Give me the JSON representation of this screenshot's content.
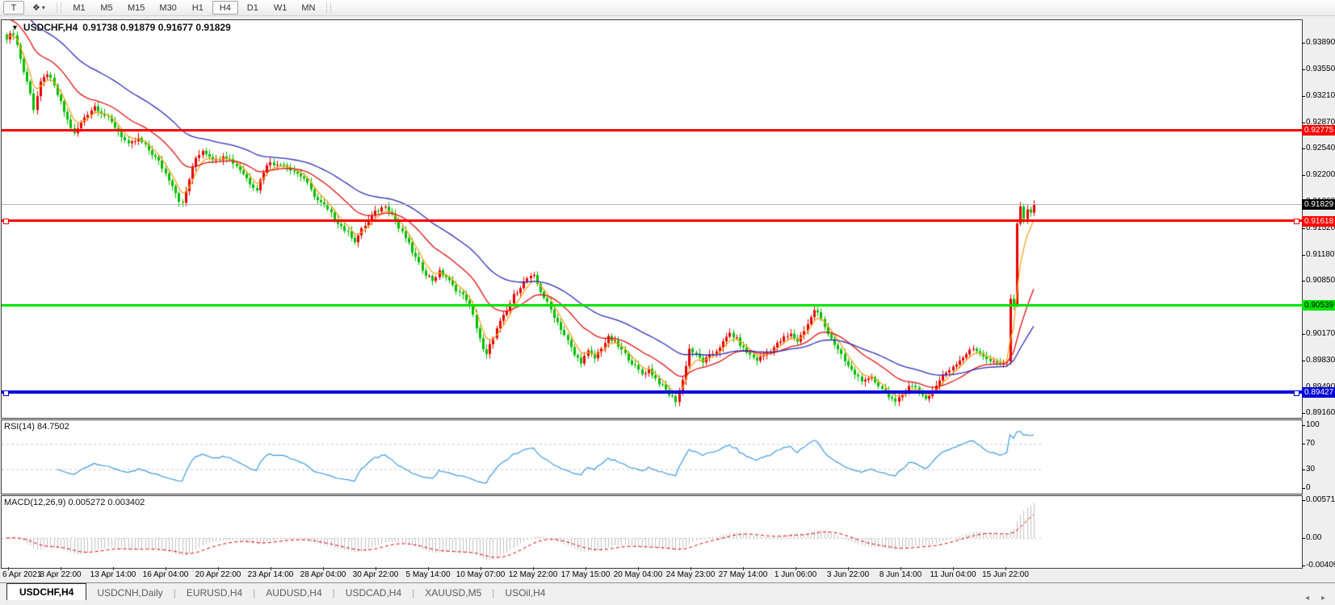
{
  "toolbar": {
    "text_tool_label": "T",
    "palette_icon": "❖",
    "caret": "▾",
    "timeframes": [
      {
        "label": "M1",
        "active": false
      },
      {
        "label": "M5",
        "active": false
      },
      {
        "label": "M15",
        "active": false
      },
      {
        "label": "M30",
        "active": false
      },
      {
        "label": "H1",
        "active": false
      },
      {
        "label": "H4",
        "active": true
      },
      {
        "label": "D1",
        "active": false
      },
      {
        "label": "W1",
        "active": false
      },
      {
        "label": "MN",
        "active": false
      }
    ]
  },
  "chart": {
    "title_symbol": "USDCHF,H4",
    "title_marker": "▼",
    "title_quote": "0.91738 0.91879 0.91677 0.91829",
    "price_axis_labels": [
      "0.93890",
      "0.93550",
      "0.93210",
      "0.92870",
      "0.92540",
      "0.92200",
      "0.91860",
      "0.91520",
      "0.91180",
      "0.90850",
      "0.90510",
      "0.90170",
      "0.89830",
      "0.89490",
      "0.89160"
    ],
    "current_price_badge": "0.91829",
    "date_labels": [
      "6 Apr 2021",
      "8 Apr 22:00",
      "13 Apr 14:00",
      "16 Apr 04:00",
      "20 Apr 22:00",
      "23 Apr 14:00",
      "28 Apr 04:00",
      "30 Apr 22:00",
      "5 May 14:00",
      "10 May 07:00",
      "12 May 22:00",
      "17 May 15:00",
      "20 May 04:00",
      "24 May 23:00",
      "27 May 14:00",
      "1 Jun 06:00",
      "3 Jun 22:00",
      "8 Jun 14:00",
      "11 Jun 04:00",
      "15 Jun 22:00"
    ]
  },
  "rsi_pane": {
    "label": "RSI(14) 84.7502",
    "axis_labels": [
      {
        "text": "100",
        "v": 100
      },
      {
        "text": "70",
        "v": 70
      },
      {
        "text": "30",
        "v": 30
      },
      {
        "text": "0",
        "v": 0
      }
    ]
  },
  "macd_pane": {
    "label": "MACD(12,26,9) 0.005272 0.003402",
    "axis_labels": [
      {
        "text": "0.005718",
        "v": 0.005718
      },
      {
        "text": "0.00",
        "v": 0
      },
      {
        "text": "-0.004094",
        "v": -0.004094
      }
    ]
  },
  "tabs": [
    {
      "label": "USDCHF,H4",
      "active": true
    },
    {
      "label": "USDCNH,Daily",
      "active": false
    },
    {
      "label": "EURUSD,H4",
      "active": false
    },
    {
      "label": "AUDUSD,H4",
      "active": false
    },
    {
      "label": "USDCAD,H4",
      "active": false
    },
    {
      "label": "XAUUSD,M5",
      "active": false
    },
    {
      "label": "USOil,H4",
      "active": false
    }
  ],
  "tab_nav": "◂ ▸",
  "chart_data": {
    "type": "candlestick",
    "symbol": "USDCHF",
    "timeframe": "H4",
    "ohlc_current": {
      "open": 0.91738,
      "high": 0.91879,
      "low": 0.91677,
      "close": 0.91829
    },
    "y_range_price": {
      "top": 0.94178,
      "bottom": 0.8912
    },
    "candle_count": 305,
    "bull_color": "#e60000",
    "bear_color": "#00be00",
    "price_path": [
      [
        0,
        0.9396
      ],
      [
        2,
        0.9401
      ],
      [
        3,
        0.9386
      ],
      [
        5,
        0.9352
      ],
      [
        7,
        0.9326
      ],
      [
        8,
        0.9304
      ],
      [
        10,
        0.9337
      ],
      [
        12,
        0.935
      ],
      [
        14,
        0.9333
      ],
      [
        16,
        0.9312
      ],
      [
        18,
        0.929
      ],
      [
        20,
        0.9272
      ],
      [
        23,
        0.9294
      ],
      [
        26,
        0.9308
      ],
      [
        28,
        0.93
      ],
      [
        30,
        0.9292
      ],
      [
        33,
        0.9276
      ],
      [
        36,
        0.9258
      ],
      [
        39,
        0.9266
      ],
      [
        42,
        0.9252
      ],
      [
        45,
        0.9237
      ],
      [
        47,
        0.9222
      ],
      [
        49,
        0.9208
      ],
      [
        51,
        0.9188
      ],
      [
        52,
        0.9183
      ],
      [
        54,
        0.9215
      ],
      [
        56,
        0.9242
      ],
      [
        58,
        0.9252
      ],
      [
        60,
        0.9245
      ],
      [
        62,
        0.9238
      ],
      [
        64,
        0.9246
      ],
      [
        66,
        0.924
      ],
      [
        68,
        0.9232
      ],
      [
        70,
        0.9222
      ],
      [
        72,
        0.921
      ],
      [
        74,
        0.9202
      ],
      [
        76,
        0.9225
      ],
      [
        78,
        0.9238
      ],
      [
        80,
        0.9232
      ],
      [
        82,
        0.9235
      ],
      [
        84,
        0.9228
      ],
      [
        86,
        0.9222
      ],
      [
        88,
        0.9216
      ],
      [
        90,
        0.92
      ],
      [
        92,
        0.9188
      ],
      [
        94,
        0.918
      ],
      [
        96,
        0.917
      ],
      [
        98,
        0.916
      ],
      [
        100,
        0.915
      ],
      [
        102,
        0.9142
      ],
      [
        103,
        0.9136
      ],
      [
        105,
        0.915
      ],
      [
        107,
        0.9162
      ],
      [
        109,
        0.9172
      ],
      [
        111,
        0.9178
      ],
      [
        112,
        0.9182
      ],
      [
        114,
        0.917
      ],
      [
        116,
        0.9152
      ],
      [
        118,
        0.914
      ],
      [
        120,
        0.9122
      ],
      [
        122,
        0.9106
      ],
      [
        124,
        0.9094
      ],
      [
        126,
        0.9086
      ],
      [
        128,
        0.9096
      ],
      [
        130,
        0.909
      ],
      [
        132,
        0.9078
      ],
      [
        134,
        0.907
      ],
      [
        136,
        0.9062
      ],
      [
        138,
        0.904
      ],
      [
        140,
        0.9012
      ],
      [
        141,
        0.8996
      ],
      [
        142,
        0.899
      ],
      [
        144,
        0.9014
      ],
      [
        146,
        0.9032
      ],
      [
        148,
        0.9046
      ],
      [
        150,
        0.9066
      ],
      [
        152,
        0.9078
      ],
      [
        154,
        0.9088
      ],
      [
        156,
        0.909
      ],
      [
        158,
        0.9072
      ],
      [
        160,
        0.9056
      ],
      [
        162,
        0.904
      ],
      [
        164,
        0.9024
      ],
      [
        166,
        0.9008
      ],
      [
        168,
        0.899
      ],
      [
        170,
        0.8982
      ],
      [
        172,
        0.8994
      ],
      [
        174,
        0.8986
      ],
      [
        176,
        0.9
      ],
      [
        178,
        0.9012
      ],
      [
        180,
        0.9006
      ],
      [
        182,
        0.8996
      ],
      [
        184,
        0.8986
      ],
      [
        186,
        0.8975
      ],
      [
        188,
        0.8966
      ],
      [
        190,
        0.8972
      ],
      [
        192,
        0.896
      ],
      [
        194,
        0.895
      ],
      [
        196,
        0.894
      ],
      [
        198,
        0.8932
      ],
      [
        200,
        0.8958
      ],
      [
        202,
        0.8998
      ],
      [
        204,
        0.899
      ],
      [
        206,
        0.8982
      ],
      [
        208,
        0.8988
      ],
      [
        210,
        0.8996
      ],
      [
        212,
        0.9006
      ],
      [
        214,
        0.9018
      ],
      [
        216,
        0.901
      ],
      [
        218,
        0.8998
      ],
      [
        220,
        0.899
      ],
      [
        222,
        0.8984
      ],
      [
        224,
        0.899
      ],
      [
        226,
        0.8996
      ],
      [
        228,
        0.9004
      ],
      [
        230,
        0.9012
      ],
      [
        232,
        0.9016
      ],
      [
        234,
        0.9008
      ],
      [
        236,
        0.9022
      ],
      [
        238,
        0.9038
      ],
      [
        239,
        0.9048
      ],
      [
        240,
        0.9044
      ],
      [
        242,
        0.9026
      ],
      [
        244,
        0.9012
      ],
      [
        246,
        0.8996
      ],
      [
        248,
        0.8982
      ],
      [
        250,
        0.897
      ],
      [
        252,
        0.8962
      ],
      [
        254,
        0.8956
      ],
      [
        256,
        0.896
      ],
      [
        258,
        0.8952
      ],
      [
        260,
        0.8944
      ],
      [
        262,
        0.8934
      ],
      [
        263,
        0.8928
      ],
      [
        265,
        0.894
      ],
      [
        267,
        0.8952
      ],
      [
        269,
        0.8948
      ],
      [
        271,
        0.894
      ],
      [
        272,
        0.8934
      ],
      [
        274,
        0.8944
      ],
      [
        276,
        0.8958
      ],
      [
        278,
        0.8968
      ],
      [
        280,
        0.8976
      ],
      [
        282,
        0.8984
      ],
      [
        284,
        0.8992
      ],
      [
        286,
        0.8998
      ],
      [
        288,
        0.8994
      ],
      [
        290,
        0.8984
      ],
      [
        292,
        0.898
      ],
      [
        294,
        0.8978
      ],
      [
        296,
        0.8982
      ],
      [
        297,
        0.9062
      ],
      [
        298,
        0.9054
      ],
      [
        299,
        0.9158
      ],
      [
        300,
        0.918
      ],
      [
        301,
        0.9164
      ],
      [
        302,
        0.9176
      ],
      [
        303,
        0.9172
      ],
      [
        304,
        0.91829
      ]
    ],
    "moving_averages": [
      {
        "period": 5,
        "color": "#f7a21b",
        "seed_offset": 0.0004
      },
      {
        "period": 20,
        "color": "#dd1111",
        "seed_offset": 0.003
      },
      {
        "period": 45,
        "color": "#2c2cb4",
        "seed_offset": 0.0048
      }
    ],
    "levels": [
      {
        "price": 0.92775,
        "label": "0.92775",
        "color": "#ff0000",
        "thickness": 3,
        "badge_bg": "#ff0000",
        "badge_fg": "#ffffff",
        "handles": false
      },
      {
        "price": 0.91618,
        "label": "0.91618",
        "color": "#ff0000",
        "thickness": 3,
        "badge_bg": "#ff0000",
        "badge_fg": "#ffffff",
        "handles": true
      },
      {
        "price": 0.90539,
        "label": "0.90539",
        "color": "#00e400",
        "thickness": 3,
        "badge_bg": "#00e400",
        "badge_fg": "#000000",
        "handles": false
      },
      {
        "price": 0.89427,
        "label": "0.89427",
        "color": "#0000e0",
        "thickness": 4,
        "badge_bg": "#0000d8",
        "badge_fg": "#ffffff",
        "handles": true
      }
    ],
    "current_price": 0.91829,
    "rsi": {
      "period": 14,
      "current": 84.7502,
      "overbought": 70,
      "oversold": 30,
      "line_color": "#3e9ade",
      "range": [
        0,
        100
      ]
    },
    "macd": {
      "fast": 12,
      "slow": 26,
      "signal": 9,
      "current_main": 0.005272,
      "current_signal": 0.003402,
      "hist_color": "#c2c2c2",
      "signal_color": "#dd0000",
      "axis_max": 0.005718,
      "axis_min": -0.004094
    }
  }
}
